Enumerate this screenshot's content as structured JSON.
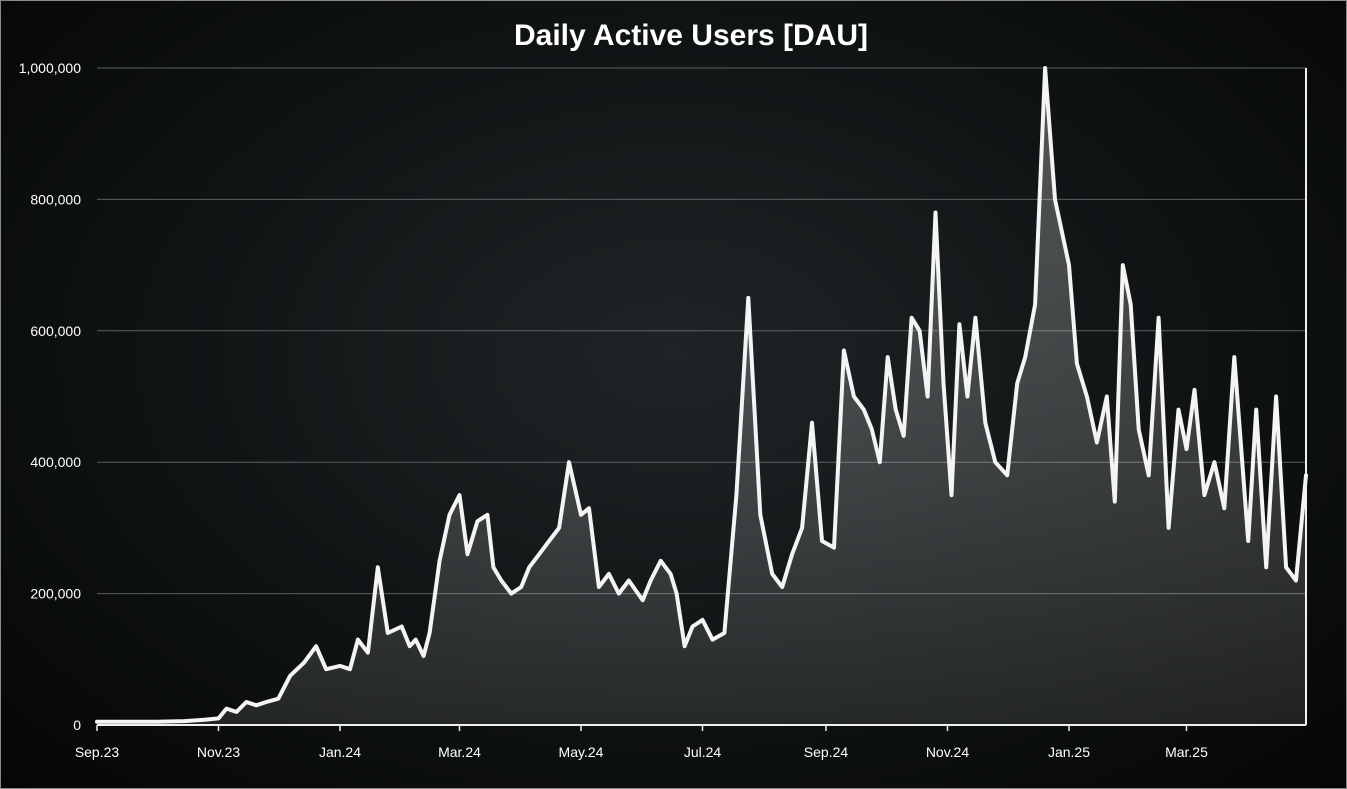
{
  "chart_data": {
    "type": "area",
    "title": "Daily Active Users [DAU]",
    "xlabel": "",
    "ylabel": "",
    "ylim": [
      0,
      1000000
    ],
    "y_ticks": [
      0,
      200000,
      400000,
      600000,
      800000,
      1000000
    ],
    "y_tick_labels": [
      "0",
      "200,000",
      "400,000",
      "600,000",
      "800,000",
      "1,000,000"
    ],
    "x_tick_labels": [
      "Sep.23",
      "Nov.23",
      "Jan.24",
      "Mar.24",
      "May.24",
      "Jul.24",
      "Sep.24",
      "Nov.24",
      "Jan.25",
      "Mar.25"
    ],
    "x_ticks": [
      "2023-09-01",
      "2023-11-01",
      "2024-01-01",
      "2024-03-01",
      "2024-05-01",
      "2024-07-01",
      "2024-09-01",
      "2024-11-01",
      "2025-01-01",
      "2025-03-01"
    ],
    "xlim": [
      "2023-09-01",
      "2025-04-30"
    ],
    "grid": true,
    "line_color": "#f4f4f4",
    "area_color": "#3a3a3a",
    "series": [
      {
        "x": [
          "2023-09-01",
          "2023-09-15",
          "2023-10-01",
          "2023-10-15",
          "2023-10-25",
          "2023-11-01",
          "2023-11-05",
          "2023-11-10",
          "2023-11-15",
          "2023-11-20",
          "2023-11-25",
          "2023-12-01",
          "2023-12-07",
          "2023-12-14",
          "2023-12-20",
          "2023-12-25",
          "2024-01-01",
          "2024-01-06",
          "2024-01-10",
          "2024-01-15",
          "2024-01-20",
          "2024-01-25",
          "2024-02-01",
          "2024-02-05",
          "2024-02-08",
          "2024-02-12",
          "2024-02-15",
          "2024-02-20",
          "2024-02-25",
          "2024-03-01",
          "2024-03-05",
          "2024-03-10",
          "2024-03-15",
          "2024-03-18",
          "2024-03-22",
          "2024-03-27",
          "2024-04-01",
          "2024-04-05",
          "2024-04-10",
          "2024-04-15",
          "2024-04-20",
          "2024-04-25",
          "2024-05-01",
          "2024-05-05",
          "2024-05-10",
          "2024-05-15",
          "2024-05-20",
          "2024-05-25",
          "2024-06-01",
          "2024-06-05",
          "2024-06-10",
          "2024-06-15",
          "2024-06-18",
          "2024-06-22",
          "2024-06-26",
          "2024-07-01",
          "2024-07-06",
          "2024-07-12",
          "2024-07-18",
          "2024-07-24",
          "2024-07-30",
          "2024-08-05",
          "2024-08-10",
          "2024-08-15",
          "2024-08-20",
          "2024-08-25",
          "2024-08-30",
          "2024-09-05",
          "2024-09-10",
          "2024-09-15",
          "2024-09-20",
          "2024-09-24",
          "2024-09-28",
          "2024-10-02",
          "2024-10-06",
          "2024-10-10",
          "2024-10-14",
          "2024-10-18",
          "2024-10-22",
          "2024-10-26",
          "2024-10-30",
          "2024-11-03",
          "2024-11-07",
          "2024-11-11",
          "2024-11-15",
          "2024-11-20",
          "2024-11-25",
          "2024-12-01",
          "2024-12-06",
          "2024-12-10",
          "2024-12-15",
          "2024-12-20",
          "2024-12-25",
          "2025-01-01",
          "2025-01-05",
          "2025-01-10",
          "2025-01-15",
          "2025-01-20",
          "2025-01-24",
          "2025-01-28",
          "2025-02-01",
          "2025-02-05",
          "2025-02-10",
          "2025-02-15",
          "2025-02-20",
          "2025-02-25",
          "2025-03-01",
          "2025-03-05",
          "2025-03-10",
          "2025-03-15",
          "2025-03-20",
          "2025-03-25",
          "2025-04-01",
          "2025-04-05",
          "2025-04-10",
          "2025-04-15",
          "2025-04-20",
          "2025-04-25",
          "2025-04-30"
        ],
        "values": [
          5000,
          5000,
          5000,
          6000,
          8000,
          10000,
          25000,
          20000,
          35000,
          30000,
          35000,
          40000,
          75000,
          95000,
          120000,
          85000,
          90000,
          85000,
          130000,
          110000,
          240000,
          140000,
          150000,
          120000,
          130000,
          105000,
          140000,
          250000,
          320000,
          350000,
          260000,
          310000,
          320000,
          240000,
          220000,
          200000,
          210000,
          240000,
          260000,
          280000,
          300000,
          400000,
          320000,
          330000,
          210000,
          230000,
          200000,
          220000,
          190000,
          220000,
          250000,
          230000,
          200000,
          120000,
          150000,
          160000,
          130000,
          140000,
          350000,
          650000,
          320000,
          230000,
          210000,
          260000,
          300000,
          460000,
          280000,
          270000,
          570000,
          500000,
          480000,
          450000,
          400000,
          560000,
          480000,
          440000,
          620000,
          600000,
          500000,
          780000,
          520000,
          350000,
          610000,
          500000,
          620000,
          460000,
          400000,
          380000,
          520000,
          560000,
          640000,
          1000000,
          800000,
          700000,
          550000,
          500000,
          430000,
          500000,
          340000,
          700000,
          640000,
          450000,
          380000,
          620000,
          300000,
          480000,
          420000,
          510000,
          350000,
          400000,
          330000,
          560000,
          280000,
          480000,
          240000,
          500000,
          240000,
          220000,
          380000
        ]
      }
    ]
  }
}
